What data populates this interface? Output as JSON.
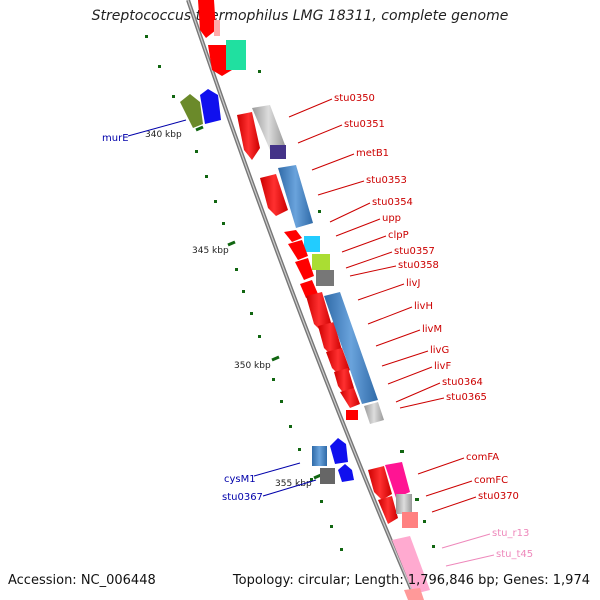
{
  "title": "Streptococcus thermophilus LMG 18311, complete genome",
  "footer": {
    "accession": "Accession: NC_006448",
    "stats": "Topology: circular; Length: 1,796,846 bp; Genes: 1,974"
  },
  "colors": {
    "backbone": "#808080",
    "cds": "#ff0000",
    "feature_blue": "#4a86c5",
    "label_red": "#cc0000",
    "label_blue": "#0000aa",
    "label_pink": "#ee88bb",
    "tick": "#006600"
  },
  "ticks": [
    {
      "label": "340 kbp"
    },
    {
      "label": "345 kbp"
    },
    {
      "label": "350 kbp"
    },
    {
      "label": "355 kbp"
    }
  ],
  "right_labels": [
    {
      "text": "stu0350",
      "color": "#cc0000"
    },
    {
      "text": "stu0351",
      "color": "#cc0000"
    },
    {
      "text": "metB1",
      "color": "#cc0000"
    },
    {
      "text": "stu0353",
      "color": "#cc0000"
    },
    {
      "text": "stu0354",
      "color": "#cc0000"
    },
    {
      "text": "upp",
      "color": "#cc0000"
    },
    {
      "text": "clpP",
      "color": "#cc0000"
    },
    {
      "text": "stu0357",
      "color": "#cc0000"
    },
    {
      "text": "stu0358",
      "color": "#cc0000"
    },
    {
      "text": "livJ",
      "color": "#cc0000"
    },
    {
      "text": "livH",
      "color": "#cc0000"
    },
    {
      "text": "livM",
      "color": "#cc0000"
    },
    {
      "text": "livG",
      "color": "#cc0000"
    },
    {
      "text": "livF",
      "color": "#cc0000"
    },
    {
      "text": "stu0364",
      "color": "#cc0000"
    },
    {
      "text": "stu0365",
      "color": "#cc0000"
    },
    {
      "text": "comFA",
      "color": "#cc0000"
    },
    {
      "text": "comFC",
      "color": "#cc0000"
    },
    {
      "text": "stu0370",
      "color": "#cc0000"
    },
    {
      "text": "stu_r13",
      "color": "#ee88bb"
    },
    {
      "text": "stu_t45",
      "color": "#ee88bb"
    }
  ],
  "left_labels": [
    {
      "text": "murE",
      "color": "#0000aa"
    },
    {
      "text": "cysM1",
      "color": "#0000aa"
    },
    {
      "text": "stu0367",
      "color": "#0000aa"
    }
  ]
}
